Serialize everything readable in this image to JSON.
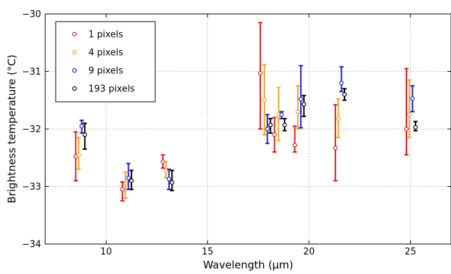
{
  "chart_data": {
    "type": "scatter",
    "title": "",
    "xlabel": "Wavelength (μm)",
    "ylabel": "Brightness temperature (°C)",
    "xlim": [
      7,
      27
    ],
    "ylim": [
      -34,
      -30
    ],
    "xticks": [
      10,
      15,
      20,
      25
    ],
    "yticks": [
      -34,
      -33,
      -32,
      -31,
      -30
    ],
    "xtick_labels": [
      "10",
      "15",
      "20",
      "25"
    ],
    "ytick_labels": [
      "−34",
      "−33",
      "−32",
      "−31",
      "−30"
    ],
    "grid": true,
    "legend_position": "top-left",
    "error_bars": true,
    "series": [
      {
        "name": "1 pixels",
        "color": "#e41a1c",
        "points": [
          {
            "x": 8.5,
            "y": -32.48,
            "lo": -32.9,
            "hi": -32.05
          },
          {
            "x": 10.8,
            "y": -33.05,
            "lo": -33.25,
            "hi": -32.92
          },
          {
            "x": 12.8,
            "y": -32.57,
            "lo": -32.68,
            "hi": -32.45
          },
          {
            "x": 17.6,
            "y": -31.03,
            "lo": -32.0,
            "hi": -30.15
          },
          {
            "x": 18.3,
            "y": -32.1,
            "lo": -32.4,
            "hi": -31.8
          },
          {
            "x": 19.3,
            "y": -32.28,
            "lo": -32.4,
            "hi": -31.95
          },
          {
            "x": 21.3,
            "y": -32.33,
            "lo": -32.9,
            "hi": -31.58
          },
          {
            "x": 24.8,
            "y": -32.0,
            "lo": -32.45,
            "hi": -30.95
          }
        ]
      },
      {
        "name": "4 pixels",
        "color": "#f5a623",
        "points": [
          {
            "x": 8.65,
            "y": -32.45,
            "lo": -32.7,
            "hi": -32.15
          },
          {
            "x": 10.95,
            "y": -32.95,
            "lo": -33.2,
            "hi": -32.75
          },
          {
            "x": 12.95,
            "y": -32.72,
            "lo": -32.85,
            "hi": -32.57
          },
          {
            "x": 17.8,
            "y": -31.5,
            "lo": -32.1,
            "hi": -30.88
          },
          {
            "x": 18.5,
            "y": -31.75,
            "lo": -32.2,
            "hi": -31.28
          },
          {
            "x": 19.45,
            "y": -31.7,
            "lo": -32.0,
            "hi": -31.25
          },
          {
            "x": 21.45,
            "y": -31.82,
            "lo": -32.15,
            "hi": -31.48
          },
          {
            "x": 24.95,
            "y": -31.75,
            "lo": -32.15,
            "hi": -31.15
          }
        ]
      },
      {
        "name": "9 pixels",
        "color": "#1a1ad6",
        "points": [
          {
            "x": 8.8,
            "y": -31.95,
            "lo": -32.07,
            "hi": -31.85
          },
          {
            "x": 11.1,
            "y": -32.85,
            "lo": -33.05,
            "hi": -32.6
          },
          {
            "x": 13.1,
            "y": -32.87,
            "lo": -33.05,
            "hi": -32.7
          },
          {
            "x": 17.95,
            "y": -32.0,
            "lo": -32.25,
            "hi": -31.75
          },
          {
            "x": 18.65,
            "y": -31.75,
            "lo": -31.82,
            "hi": -31.7
          },
          {
            "x": 19.6,
            "y": -31.48,
            "lo": -31.98,
            "hi": -30.9
          },
          {
            "x": 21.6,
            "y": -31.2,
            "lo": -31.35,
            "hi": -30.92
          },
          {
            "x": 25.1,
            "y": -31.47,
            "lo": -31.7,
            "hi": -31.25
          }
        ]
      },
      {
        "name": "193 pixels",
        "color": "#000000",
        "points": [
          {
            "x": 8.95,
            "y": -32.1,
            "lo": -32.35,
            "hi": -31.9
          },
          {
            "x": 11.25,
            "y": -32.9,
            "lo": -33.05,
            "hi": -32.72
          },
          {
            "x": 13.25,
            "y": -32.93,
            "lo": -33.07,
            "hi": -32.72
          },
          {
            "x": 18.1,
            "y": -31.93,
            "lo": -32.07,
            "hi": -31.82
          },
          {
            "x": 18.8,
            "y": -31.93,
            "lo": -32.03,
            "hi": -31.82
          },
          {
            "x": 19.75,
            "y": -31.57,
            "lo": -31.78,
            "hi": -31.42
          },
          {
            "x": 21.75,
            "y": -31.4,
            "lo": -31.5,
            "hi": -31.3
          },
          {
            "x": 25.25,
            "y": -31.97,
            "lo": -32.03,
            "hi": -31.87
          }
        ]
      }
    ]
  }
}
